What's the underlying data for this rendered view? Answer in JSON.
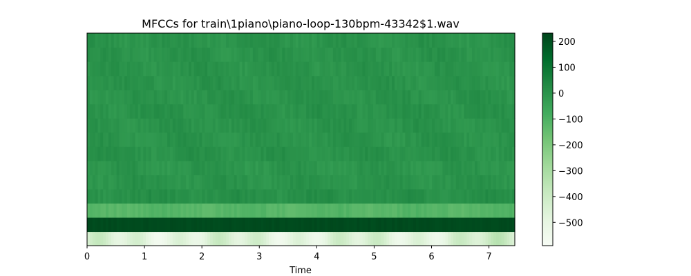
{
  "chart_data": {
    "type": "heatmap",
    "title": "MFCCs for train\\1piano\\piano-loop-130bpm-43342$1.wav",
    "xlabel": "Time",
    "ylabel": "",
    "xlim": [
      0,
      7.45
    ],
    "x_ticks": [
      0,
      1,
      2,
      3,
      4,
      5,
      6,
      7
    ],
    "x_tick_labels": [
      "0",
      "1",
      "2",
      "3",
      "4",
      "5",
      "6",
      "7"
    ],
    "colormap": "Greens",
    "vmin": -590,
    "vmax": 232,
    "colorbar": {
      "ticks": [
        200,
        100,
        0,
        -100,
        -200,
        -300,
        -400,
        -500
      ],
      "tick_labels": [
        "200",
        "100",
        "0",
        "−100",
        "−200",
        "−300",
        "−400",
        "−500"
      ]
    },
    "n_coefficients": 15,
    "n_frames": 160,
    "row_means": [
      -470,
      215,
      -120,
      10,
      0,
      -5,
      5,
      0,
      0,
      5,
      0,
      0,
      0,
      0,
      0
    ],
    "row_notes": "Rows ordered bottom (coefficient 0) to top (coefficient 14)."
  }
}
